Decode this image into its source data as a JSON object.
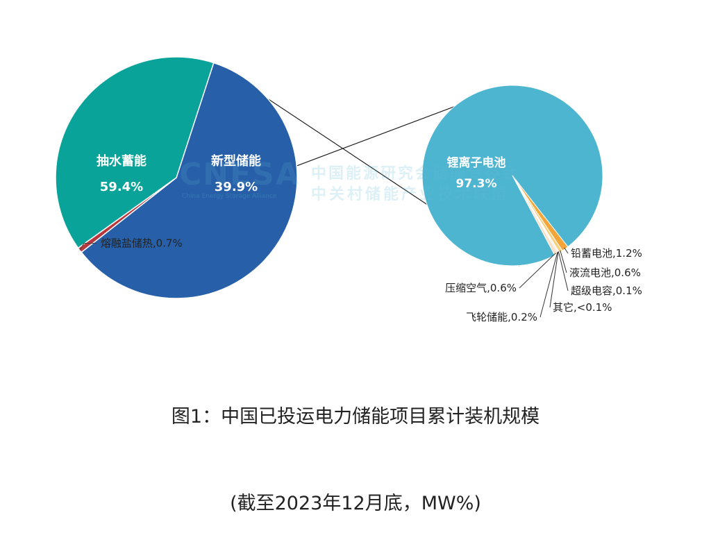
{
  "caption": {
    "title": "图1：中国已投运电力储能项目累计装机规模",
    "subtitle": "(截至2023年12月底，MW%)"
  },
  "watermark": {
    "logo_text": "CNESA",
    "sub_text": "China Energy Storage Alliance",
    "line1": "中国能源研究会储能专委会",
    "line2": "中关村储能产业技术联盟"
  },
  "colors": {
    "pumped": "#2760a8",
    "new": "#0aa39a",
    "molten": "#b8383d",
    "lithium": "#4db5d0",
    "lead": "#f2a63a",
    "flow": "#f7d080",
    "supercap": "#e8e8e8",
    "other": "#d9d9d9",
    "flywheel": "#f5c8a0",
    "air": "#f9e0c8",
    "connector": "#1a1a1a"
  },
  "chart_data": [
    {
      "type": "pie",
      "name": "main",
      "slices": [
        {
          "label": "抽水蓄能",
          "value": 59.4,
          "display": "59.4%",
          "color": "#2760a8"
        },
        {
          "label": "熔融盐储热",
          "value": 0.7,
          "display": "0.7%",
          "color": "#b8383d"
        },
        {
          "label": "新型储能",
          "value": 39.9,
          "display": "39.9%",
          "color": "#0aa39a"
        }
      ]
    },
    {
      "type": "pie",
      "name": "breakdown",
      "slices": [
        {
          "label": "锂离子电池",
          "value": 97.3,
          "display": "97.3%",
          "color": "#4db5d0"
        },
        {
          "label": "铅蓄电池",
          "value": 1.2,
          "display": "1.2%",
          "color": "#f2a63a"
        },
        {
          "label": "液流电池",
          "value": 0.6,
          "display": "0.6%",
          "color": "#f7d080"
        },
        {
          "label": "超级电容",
          "value": 0.1,
          "display": "0.1%",
          "color": "#e8e8e8"
        },
        {
          "label": "其它",
          "value": 0.05,
          "display": "<0.1%",
          "color": "#d9d9d9"
        },
        {
          "label": "飞轮储能",
          "value": 0.2,
          "display": "0.2%",
          "color": "#f5c8a0"
        },
        {
          "label": "压缩空气",
          "value": 0.6,
          "display": "0.6%",
          "color": "#f9e0c8"
        }
      ]
    }
  ]
}
